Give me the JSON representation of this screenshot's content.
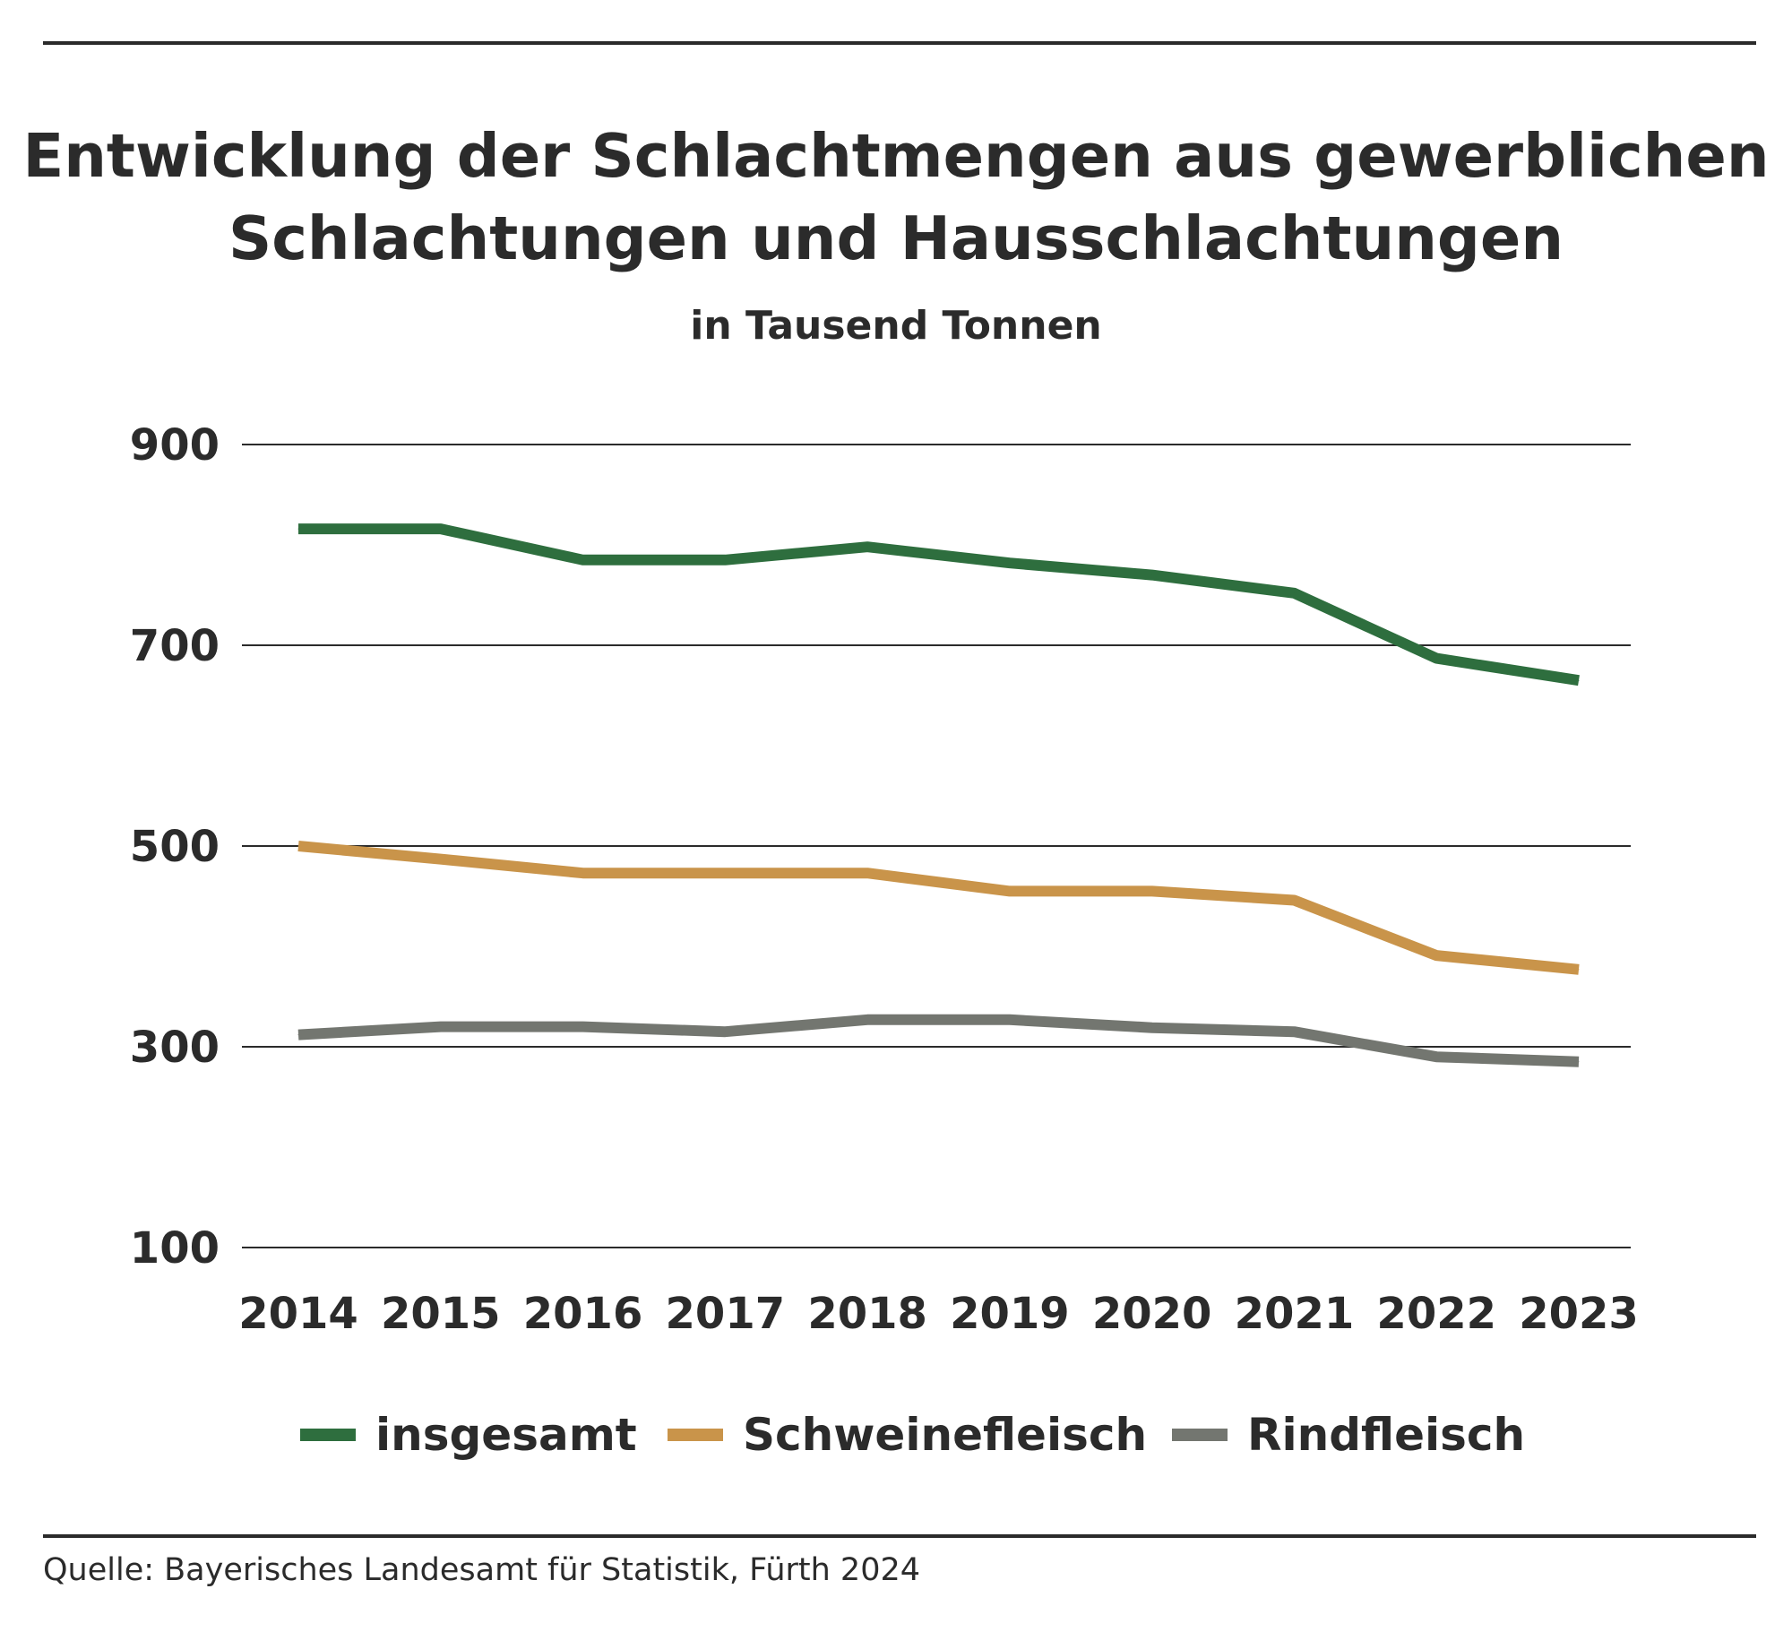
{
  "title_line1": "Entwicklung der Schlachtmengen aus gewerblichen",
  "title_line2": "Schlachtungen und Hausschlachtungen",
  "subtitle": "in Tausend Tonnen",
  "source": "Quelle: Bayerisches Landesamt für Statistik, Fürth 2024",
  "chart_data": {
    "type": "line",
    "title": "Entwicklung der Schlachtmengen aus gewerblichen Schlachtungen und Hausschlachtungen",
    "subtitle": "in Tausend Tonnen",
    "x": [
      "2014",
      "2015",
      "2016",
      "2017",
      "2018",
      "2019",
      "2020",
      "2021",
      "2022",
      "2023"
    ],
    "yticks": [
      100,
      300,
      500,
      700,
      900
    ],
    "ylim": [
      100,
      900
    ],
    "grid": true,
    "legend_position": "bottom",
    "series": [
      {
        "name": "insgesamt",
        "color": "#2e6e3e",
        "values": [
          816,
          816,
          785,
          785,
          798,
          782,
          770,
          752,
          687,
          665
        ]
      },
      {
        "name": "Schweinefleisch",
        "color": "#c9944a",
        "values": [
          500,
          487,
          473,
          473,
          473,
          455,
          455,
          446,
          391,
          377
        ]
      },
      {
        "name": "Rindfleisch",
        "color": "#737670",
        "values": [
          312,
          320,
          320,
          315,
          327,
          327,
          319,
          315,
          290,
          285
        ]
      }
    ]
  }
}
